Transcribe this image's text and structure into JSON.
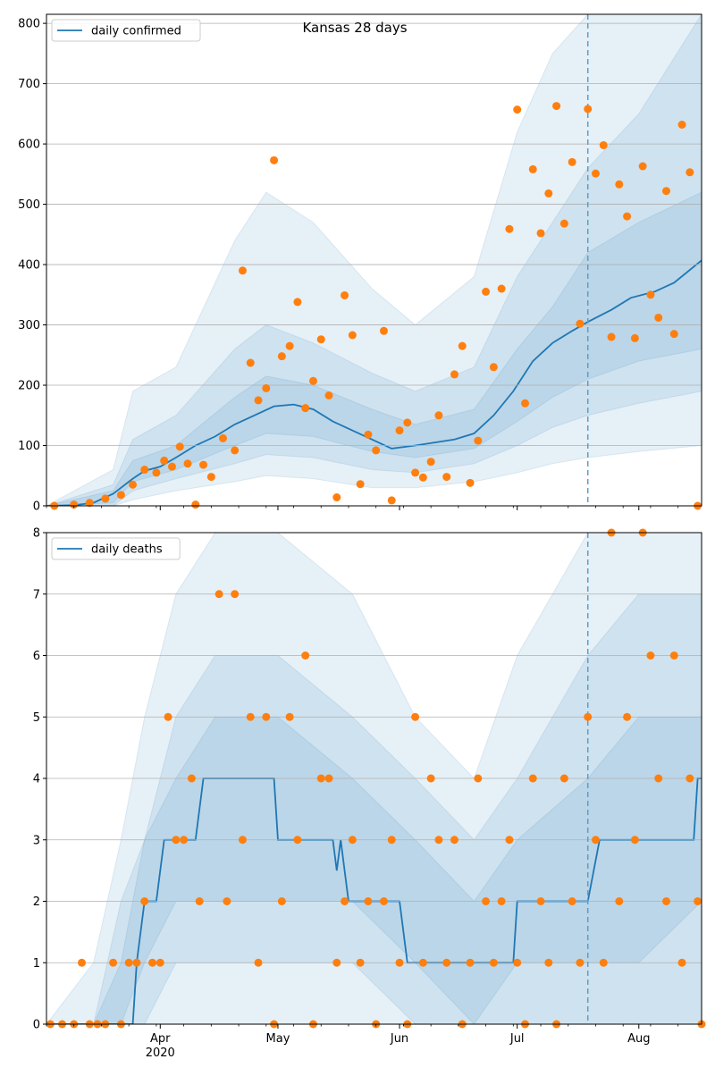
{
  "title": "Kansas 28 days",
  "colors": {
    "line": "#1f77b4",
    "dots": "#ff7f0e",
    "band": "#1f77b4",
    "grid": "#b0b0b0",
    "vline": "#5b9fc8"
  },
  "x_ticks": [
    {
      "label": "Apr",
      "date": "2020-04-01"
    },
    {
      "label": "May",
      "date": "2020-05-01"
    },
    {
      "label": "Jun",
      "date": "2020-06-01"
    },
    {
      "label": "Jul",
      "date": "2020-07-01"
    },
    {
      "label": "Aug",
      "date": "2020-08-01"
    }
  ],
  "year_label": "2020",
  "chart_data": [
    {
      "type": "line",
      "legend": "daily confirmed",
      "legend_position": "top-left",
      "grid": true,
      "xlim": [
        "2020-03-03",
        "2020-08-17"
      ],
      "ylim": [
        0,
        815
      ],
      "yticks": [
        0,
        100,
        200,
        300,
        400,
        500,
        600,
        700,
        800
      ],
      "forecast_start": "2020-07-19",
      "line": {
        "x": [
          "2020-03-03",
          "2020-03-10",
          "2020-03-15",
          "2020-03-20",
          "2020-03-25",
          "2020-03-28",
          "2020-04-01",
          "2020-04-05",
          "2020-04-10",
          "2020-04-15",
          "2020-04-20",
          "2020-04-25",
          "2020-04-30",
          "2020-05-05",
          "2020-05-10",
          "2020-05-15",
          "2020-05-20",
          "2020-05-25",
          "2020-05-30",
          "2020-06-05",
          "2020-06-10",
          "2020-06-15",
          "2020-06-20",
          "2020-06-25",
          "2020-06-30",
          "2020-07-05",
          "2020-07-10",
          "2020-07-15",
          "2020-07-19",
          "2020-07-25",
          "2020-07-30",
          "2020-08-05",
          "2020-08-10",
          "2020-08-17"
        ],
        "y": [
          0,
          1,
          5,
          20,
          45,
          58,
          65,
          80,
          100,
          115,
          135,
          150,
          165,
          168,
          160,
          140,
          125,
          110,
          95,
          100,
          105,
          110,
          120,
          150,
          190,
          240,
          270,
          290,
          305,
          325,
          345,
          355,
          370,
          407
        ]
      },
      "bands": [
        {
          "name": "outer",
          "x": [
            "2020-03-03",
            "2020-03-20",
            "2020-03-25",
            "2020-04-05",
            "2020-04-20",
            "2020-04-28",
            "2020-05-10",
            "2020-05-25",
            "2020-06-05",
            "2020-06-20",
            "2020-07-01",
            "2020-07-10",
            "2020-07-19",
            "2020-08-01",
            "2020-08-17"
          ],
          "low": [
            0,
            0,
            10,
            25,
            40,
            50,
            45,
            30,
            30,
            40,
            55,
            70,
            80,
            90,
            100
          ],
          "high": [
            0,
            60,
            190,
            230,
            440,
            520,
            470,
            360,
            300,
            380,
            620,
            750,
            815,
            815,
            815
          ]
        },
        {
          "name": "mid",
          "x": [
            "2020-03-03",
            "2020-03-20",
            "2020-03-25",
            "2020-04-05",
            "2020-04-20",
            "2020-04-28",
            "2020-05-10",
            "2020-05-25",
            "2020-06-05",
            "2020-06-20",
            "2020-07-01",
            "2020-07-10",
            "2020-07-19",
            "2020-08-01",
            "2020-08-17"
          ],
          "low": [
            0,
            0,
            25,
            45,
            70,
            85,
            80,
            60,
            55,
            70,
            100,
            130,
            150,
            170,
            190
          ],
          "high": [
            0,
            35,
            110,
            150,
            260,
            300,
            270,
            220,
            190,
            230,
            380,
            470,
            560,
            650,
            815
          ]
        },
        {
          "name": "inner",
          "x": [
            "2020-03-03",
            "2020-03-20",
            "2020-03-25",
            "2020-04-05",
            "2020-04-20",
            "2020-04-28",
            "2020-05-10",
            "2020-05-25",
            "2020-06-05",
            "2020-06-20",
            "2020-07-01",
            "2020-07-10",
            "2020-07-19",
            "2020-08-01",
            "2020-08-17"
          ],
          "low": [
            0,
            5,
            40,
            60,
            100,
            120,
            115,
            90,
            80,
            95,
            140,
            180,
            210,
            240,
            260
          ],
          "high": [
            0,
            25,
            75,
            100,
            180,
            215,
            200,
            160,
            135,
            160,
            260,
            330,
            420,
            470,
            520
          ]
        }
      ],
      "points": {
        "x": [
          "2020-03-05",
          "2020-03-10",
          "2020-03-14",
          "2020-03-18",
          "2020-03-22",
          "2020-03-25",
          "2020-03-28",
          "2020-03-31",
          "2020-04-02",
          "2020-04-04",
          "2020-04-06",
          "2020-04-08",
          "2020-04-10",
          "2020-04-12",
          "2020-04-14",
          "2020-04-17",
          "2020-04-20",
          "2020-04-22",
          "2020-04-24",
          "2020-04-26",
          "2020-04-28",
          "2020-04-30",
          "2020-05-02",
          "2020-05-04",
          "2020-05-06",
          "2020-05-08",
          "2020-05-10",
          "2020-05-12",
          "2020-05-14",
          "2020-05-16",
          "2020-05-18",
          "2020-05-20",
          "2020-05-22",
          "2020-05-24",
          "2020-05-26",
          "2020-05-28",
          "2020-05-30",
          "2020-06-01",
          "2020-06-03",
          "2020-06-05",
          "2020-06-07",
          "2020-06-09",
          "2020-06-11",
          "2020-06-13",
          "2020-06-15",
          "2020-06-17",
          "2020-06-19",
          "2020-06-21",
          "2020-06-23",
          "2020-06-25",
          "2020-06-27",
          "2020-06-29",
          "2020-07-01",
          "2020-07-03",
          "2020-07-05",
          "2020-07-07",
          "2020-07-09",
          "2020-07-11",
          "2020-07-13",
          "2020-07-15",
          "2020-07-17",
          "2020-07-19",
          "2020-07-21",
          "2020-07-23",
          "2020-07-25",
          "2020-07-27",
          "2020-07-29",
          "2020-07-31",
          "2020-08-02",
          "2020-08-04",
          "2020-08-06",
          "2020-08-08",
          "2020-08-10",
          "2020-08-12",
          "2020-08-14",
          "2020-08-16"
        ],
        "y": [
          0,
          2,
          5,
          12,
          18,
          35,
          60,
          55,
          75,
          65,
          98,
          70,
          2,
          68,
          48,
          112,
          92,
          390,
          237,
          175,
          195,
          573,
          248,
          265,
          338,
          162,
          207,
          276,
          183,
          14,
          349,
          283,
          36,
          118,
          92,
          290,
          9,
          125,
          138,
          55,
          47,
          73,
          150,
          48,
          218,
          265,
          38,
          108,
          355,
          230,
          360,
          459,
          657,
          170,
          558,
          452,
          518,
          663,
          468,
          570,
          302,
          658,
          551,
          598,
          280,
          533,
          480,
          278,
          563,
          350,
          312,
          522,
          285,
          632,
          553,
          0
        ]
      }
    },
    {
      "type": "line",
      "legend": "daily deaths",
      "legend_position": "top-left",
      "grid": true,
      "xlim": [
        "2020-03-03",
        "2020-08-17"
      ],
      "ylim": [
        0,
        8
      ],
      "yticks": [
        0,
        1,
        2,
        3,
        4,
        5,
        6,
        7,
        8
      ],
      "forecast_start": "2020-07-19",
      "line": {
        "x": [
          "2020-03-03",
          "2020-03-25",
          "2020-03-26",
          "2020-03-28",
          "2020-03-31",
          "2020-04-02",
          "2020-04-10",
          "2020-04-12",
          "2020-04-30",
          "2020-05-01",
          "2020-05-15",
          "2020-05-16",
          "2020-05-17",
          "2020-05-19",
          "2020-06-01",
          "2020-06-03",
          "2020-06-30",
          "2020-07-01",
          "2020-07-19",
          "2020-07-22",
          "2020-07-25",
          "2020-07-26",
          "2020-08-15",
          "2020-08-16",
          "2020-08-17"
        ],
        "y": [
          0,
          0,
          1,
          2,
          2,
          3,
          3,
          4,
          4,
          3,
          3,
          2.5,
          3,
          2,
          2,
          1,
          1,
          2,
          2,
          3,
          3,
          3,
          3,
          4,
          4
        ]
      },
      "bands": [
        {
          "name": "outer",
          "x": [
            "2020-03-03",
            "2020-03-15",
            "2020-03-22",
            "2020-03-28",
            "2020-04-05",
            "2020-04-15",
            "2020-05-01",
            "2020-05-20",
            "2020-06-05",
            "2020-06-20",
            "2020-07-01",
            "2020-07-19",
            "2020-08-01",
            "2020-08-17"
          ],
          "low": [
            0,
            0,
            0,
            0,
            0,
            0,
            0,
            0,
            0,
            0,
            0,
            0,
            0,
            0
          ],
          "high": [
            0,
            1,
            3,
            5,
            7,
            8,
            8,
            7,
            5,
            4,
            6,
            8,
            8,
            8
          ]
        },
        {
          "name": "mid",
          "x": [
            "2020-03-03",
            "2020-03-15",
            "2020-03-22",
            "2020-03-28",
            "2020-04-05",
            "2020-04-15",
            "2020-05-01",
            "2020-05-20",
            "2020-06-05",
            "2020-06-20",
            "2020-07-01",
            "2020-07-19",
            "2020-08-01",
            "2020-08-17"
          ],
          "low": [
            0,
            0,
            0,
            0,
            1,
            1,
            1,
            1,
            0,
            0,
            0,
            0,
            0,
            0
          ],
          "high": [
            0,
            0,
            2,
            3,
            5,
            6,
            6,
            5,
            4,
            3,
            4,
            6,
            7,
            7
          ]
        },
        {
          "name": "inner",
          "x": [
            "2020-03-03",
            "2020-03-15",
            "2020-03-22",
            "2020-03-28",
            "2020-04-05",
            "2020-04-15",
            "2020-05-01",
            "2020-05-20",
            "2020-06-05",
            "2020-06-20",
            "2020-07-01",
            "2020-07-19",
            "2020-08-01",
            "2020-08-17"
          ],
          "low": [
            0,
            0,
            0,
            1,
            2,
            2,
            2,
            2,
            1,
            0,
            1,
            1,
            1,
            2
          ],
          "high": [
            0,
            0,
            1,
            3,
            4,
            5,
            5,
            4,
            3,
            2,
            3,
            4,
            5,
            5
          ]
        }
      ],
      "points": {
        "x": [
          "2020-03-04",
          "2020-03-07",
          "2020-03-10",
          "2020-03-12",
          "2020-03-14",
          "2020-03-16",
          "2020-03-18",
          "2020-03-20",
          "2020-03-22",
          "2020-03-24",
          "2020-03-26",
          "2020-03-28",
          "2020-03-30",
          "2020-04-01",
          "2020-04-03",
          "2020-04-05",
          "2020-04-07",
          "2020-04-09",
          "2020-04-11",
          "2020-04-16",
          "2020-04-18",
          "2020-04-20",
          "2020-04-22",
          "2020-04-24",
          "2020-04-26",
          "2020-04-28",
          "2020-04-30",
          "2020-05-02",
          "2020-05-04",
          "2020-05-06",
          "2020-05-08",
          "2020-05-10",
          "2020-05-12",
          "2020-05-14",
          "2020-05-16",
          "2020-05-18",
          "2020-05-20",
          "2020-05-22",
          "2020-05-24",
          "2020-05-26",
          "2020-05-28",
          "2020-05-30",
          "2020-06-01",
          "2020-06-03",
          "2020-06-05",
          "2020-06-07",
          "2020-06-09",
          "2020-06-11",
          "2020-06-13",
          "2020-06-15",
          "2020-06-17",
          "2020-06-19",
          "2020-06-21",
          "2020-06-23",
          "2020-06-25",
          "2020-06-27",
          "2020-06-29",
          "2020-07-01",
          "2020-07-03",
          "2020-07-05",
          "2020-07-07",
          "2020-07-09",
          "2020-07-11",
          "2020-07-13",
          "2020-07-15",
          "2020-07-17",
          "2020-07-19",
          "2020-07-21",
          "2020-07-23",
          "2020-07-25",
          "2020-07-27",
          "2020-07-29",
          "2020-07-31",
          "2020-08-02",
          "2020-08-04",
          "2020-08-06",
          "2020-08-08",
          "2020-08-10",
          "2020-08-12",
          "2020-08-14",
          "2020-08-16",
          "2020-08-17"
        ],
        "y": [
          0,
          0,
          0,
          1,
          0,
          0,
          0,
          1,
          0,
          1,
          1,
          2,
          1,
          1,
          5,
          3,
          3,
          4,
          2,
          7,
          2,
          7,
          3,
          5,
          1,
          5,
          0,
          2,
          5,
          3,
          6,
          0,
          4,
          4,
          1,
          2,
          3,
          1,
          2,
          0,
          2,
          3,
          1,
          0,
          5,
          1,
          4,
          3,
          1,
          3,
          0,
          1,
          4,
          2,
          1,
          2,
          3,
          1,
          0,
          4,
          2,
          1,
          0,
          4,
          2,
          1,
          5,
          3,
          1,
          8,
          2,
          5,
          3,
          8,
          6,
          4,
          2,
          6,
          1,
          4,
          2,
          0
        ]
      }
    }
  ]
}
